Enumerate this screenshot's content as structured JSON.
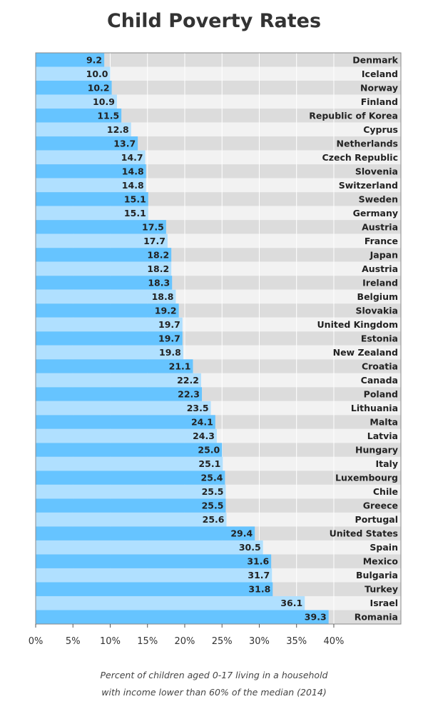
{
  "chart_data": {
    "type": "bar",
    "orientation": "horizontal",
    "title": "Child Poverty Rates",
    "footnote_lines": [
      "Percent of children aged 0-17 living in a household",
      "with income lower than 60% of the median (2014)"
    ],
    "categories": [
      "Denmark",
      "Iceland",
      "Norway",
      "Finland",
      "Republic of Korea",
      "Cyprus",
      "Netherlands",
      "Czech Republic",
      "Slovenia",
      "Switzerland",
      "Sweden",
      "Germany",
      "Austria",
      "France",
      "Japan",
      "Austria",
      "Ireland",
      "Belgium",
      "Slovakia",
      "United Kingdom",
      "Estonia",
      "New Zealand",
      "Croatia",
      "Canada",
      "Poland",
      "Lithuania",
      "Malta",
      "Latvia",
      "Hungary",
      "Italy",
      "Luxembourg",
      "Chile",
      "Greece",
      "Portugal",
      "United States",
      "Spain",
      "Mexico",
      "Bulgaria",
      "Turkey",
      "Israel",
      "Romania"
    ],
    "values": [
      9.2,
      10.0,
      10.2,
      10.9,
      11.5,
      12.8,
      13.7,
      14.7,
      14.8,
      14.8,
      15.1,
      15.1,
      17.5,
      17.7,
      18.2,
      18.2,
      18.3,
      18.8,
      19.2,
      19.7,
      19.7,
      19.8,
      21.1,
      22.2,
      22.3,
      23.5,
      24.1,
      24.3,
      25.0,
      25.1,
      25.4,
      25.5,
      25.5,
      25.6,
      29.4,
      30.5,
      31.6,
      31.7,
      31.8,
      36.1,
      39.3
    ],
    "value_labels": [
      "9.2",
      "10.0",
      "10.2",
      "10.9",
      "11.5",
      "12.8",
      "13.7",
      "14.7",
      "14.8",
      "14.8",
      "15.1",
      "15.1",
      "17.5",
      "17.7",
      "18.2",
      "18.2",
      "18.3",
      "18.8",
      "19.2",
      "19.7",
      "19.7",
      "19.8",
      "21.1",
      "22.2",
      "22.3",
      "23.5",
      "24.1",
      "24.3",
      "25.0",
      "25.1",
      "25.4",
      "25.5",
      "25.5",
      "25.6",
      "29.4",
      "30.5",
      "31.6",
      "31.7",
      "31.8",
      "36.1",
      "39.3"
    ],
    "xlim": [
      0,
      49
    ],
    "x_ticks": [
      0,
      5,
      10,
      15,
      20,
      25,
      30,
      35,
      40
    ],
    "x_tick_labels": [
      "0%",
      "5%",
      "10%",
      "15%",
      "20%",
      "25%",
      "30%",
      "35%",
      "40%"
    ],
    "grid": true,
    "colors": {
      "bar_dark": "#66c4ff",
      "bar_light": "#b0e0ff",
      "band_dark": "#dcdcdc",
      "band_light": "#f2f2f2",
      "gridline": "#ffffff"
    }
  }
}
